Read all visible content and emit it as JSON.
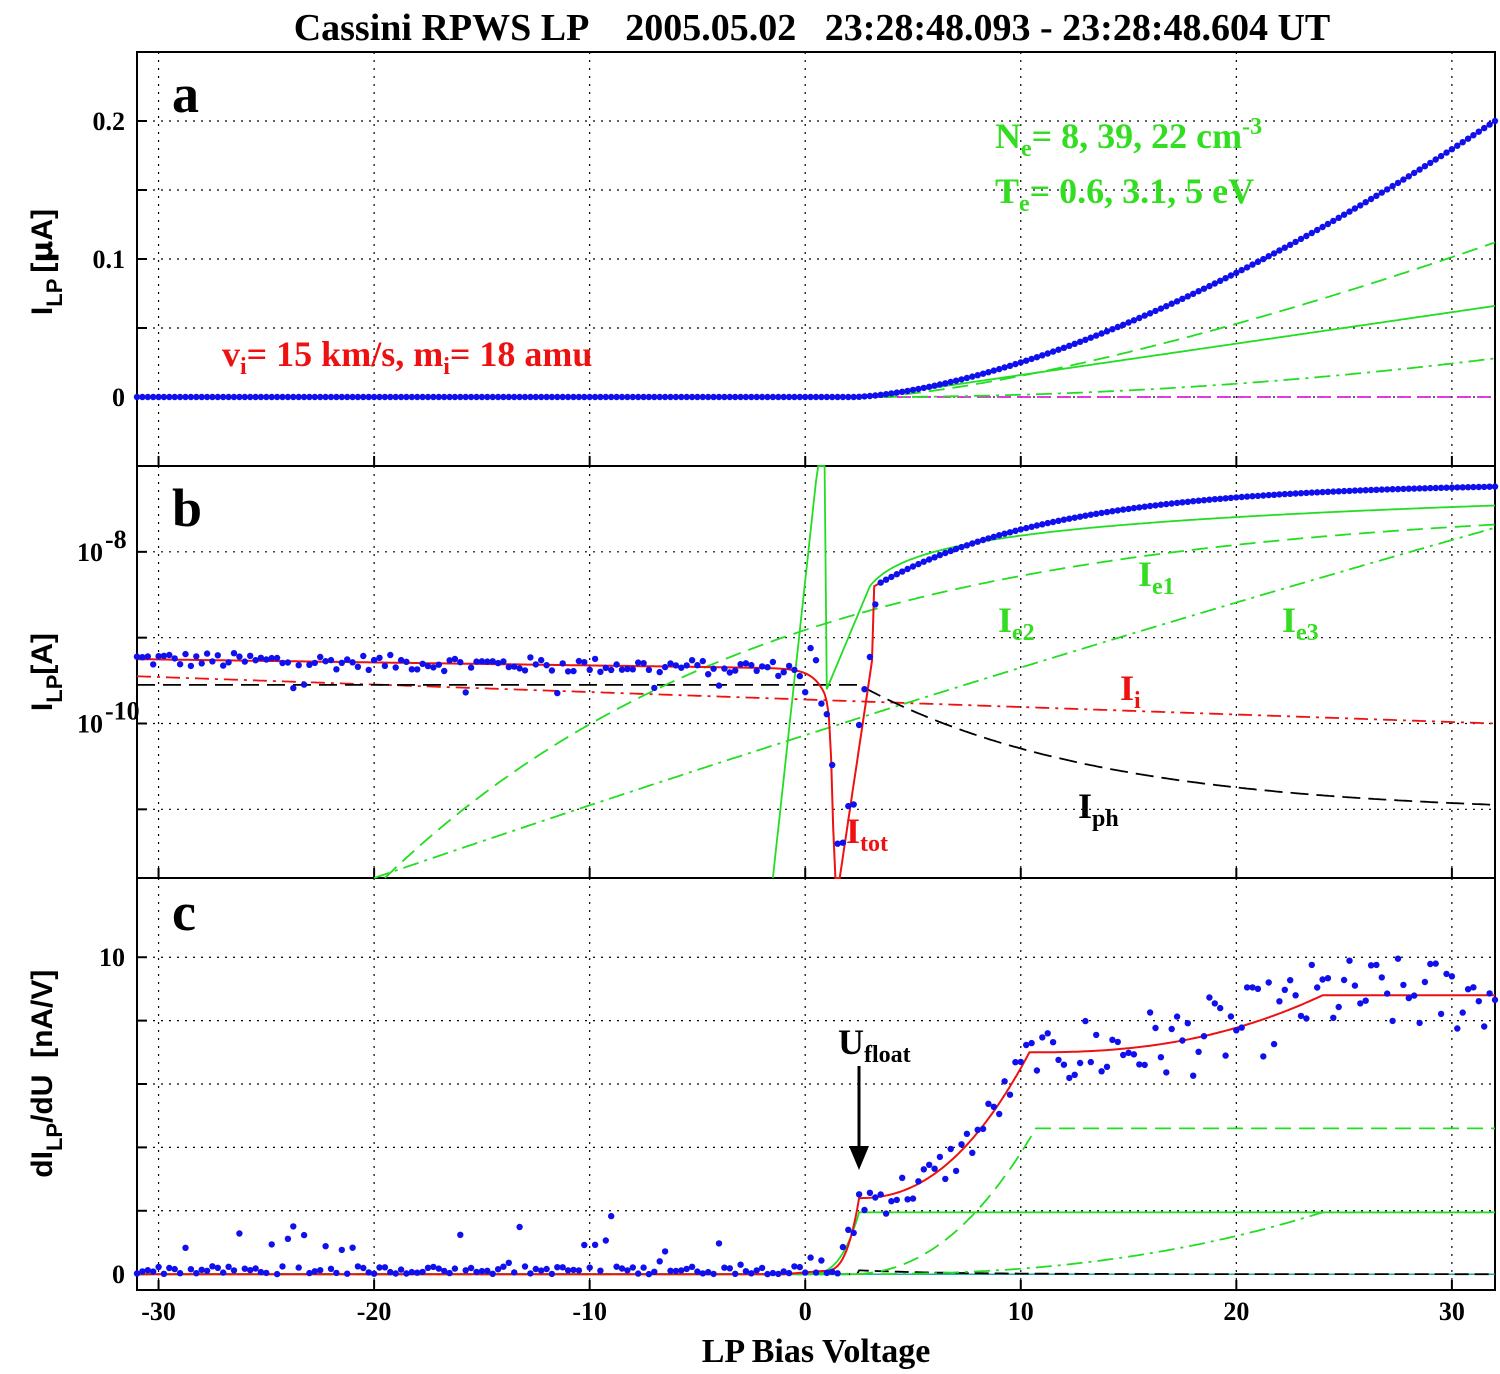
{
  "title": "Cassini RPWS LP    2005.05.02   23:28:48.093 - 23:28:48.604 UT",
  "xlabel": "LP Bias Voltage",
  "colors": {
    "data": "#1010ee",
    "fit_total": "#ee1111",
    "electron": "#22dd22",
    "photo": "#000000",
    "ion": "#ee1111",
    "magenta": "#dd22dd"
  },
  "panels": {
    "a": {
      "letter": "a",
      "ylabel_main": "I",
      "ylabel_sub": "LP",
      "ylabel_unit": "[",
      "ylabel_mu": "μ",
      "ylabel_unit2": "A]",
      "ann_ne_lead": "N",
      "ann_ne_sub": "e",
      "ann_ne_text": "= 8, 39, 22 cm",
      "ann_ne_sup": "-3",
      "ann_te_lead": "T",
      "ann_te_sub": "e",
      "ann_te_text": "= 0.6, 3.1, 5 eV",
      "ann_vi_lead": "v",
      "ann_vi_sub": "i",
      "ann_vi_text": "= 15 km/s, m",
      "ann_mi_sub": "i",
      "ann_mi_text": "= 18 amu"
    },
    "b": {
      "letter": "b",
      "ylabel_main": "I",
      "ylabel_sub": "LP",
      "ylabel_unit": "[A]",
      "label_ie1": "I",
      "label_ie1_sub": "e1",
      "label_ie2": "I",
      "label_ie2_sub": "e2",
      "label_ie3": "I",
      "label_ie3_sub": "e3",
      "label_ii": "I",
      "label_ii_sub": "i",
      "label_iph": "I",
      "label_iph_sub": "ph",
      "label_itot": "I",
      "label_itot_sub": "tot"
    },
    "c": {
      "letter": "c",
      "ylabel_main": "dI",
      "ylabel_sub": "LP",
      "ylabel_unit": "/dU  [nA/V]",
      "label_ufloat": "U",
      "label_ufloat_sub": "float"
    }
  },
  "chart_data": [
    {
      "panel": "a",
      "type": "line",
      "xlim": [
        -31,
        32
      ],
      "ylim": [
        -0.05,
        0.25
      ],
      "x_ticks": [
        -30,
        -20,
        -10,
        0,
        10,
        20,
        30
      ],
      "y_ticks": [
        0,
        0.1,
        0.2
      ],
      "y_tick_labels": [
        "0",
        "0.1",
        "0.2"
      ],
      "grid": true,
      "series": [
        {
          "name": "total fit",
          "style": "solid",
          "color": "red"
        },
        {
          "name": "Ie1",
          "style": "solid",
          "color": "green"
        },
        {
          "name": "Ie2",
          "style": "dashed",
          "color": "green"
        },
        {
          "name": "Ie3",
          "style": "dashdot",
          "color": "green"
        },
        {
          "name": "data",
          "style": "dots",
          "color": "blue"
        }
      ]
    },
    {
      "panel": "b",
      "type": "line",
      "xlim": [
        -31,
        32
      ],
      "yscale": "log",
      "ylim_log10": [
        -11.8,
        -7.0
      ],
      "y_ticks_log10": [
        -8,
        -10
      ],
      "y_tick_labels": [
        "10",
        "10"
      ],
      "y_tick_exps": [
        "-8",
        "-10"
      ],
      "grid": true,
      "series": [
        {
          "name": "I_tot",
          "style": "solid",
          "color": "red"
        },
        {
          "name": "I_e1",
          "style": "solid",
          "color": "green"
        },
        {
          "name": "I_e2",
          "style": "dashed",
          "color": "green"
        },
        {
          "name": "I_e3",
          "style": "dashdot",
          "color": "green"
        },
        {
          "name": "I_i",
          "style": "dashdot",
          "color": "red"
        },
        {
          "name": "I_ph",
          "style": "dashed",
          "color": "black"
        },
        {
          "name": "data",
          "style": "dots",
          "color": "blue"
        }
      ]
    },
    {
      "panel": "c",
      "type": "line",
      "xlim": [
        -31,
        32
      ],
      "ylim": [
        -0.5,
        12.5
      ],
      "y_ticks": [
        0,
        10
      ],
      "y_tick_labels": [
        "0",
        "10"
      ],
      "x_tick_labels": [
        "-30",
        "-20",
        "-10",
        "0",
        "10",
        "20",
        "30"
      ],
      "float_potential_V": 2.5,
      "grid": true,
      "series": [
        {
          "name": "total fit",
          "style": "solid",
          "color": "red"
        },
        {
          "name": "Ie1",
          "style": "solid",
          "color": "green"
        },
        {
          "name": "Ie2",
          "style": "dashed",
          "color": "green"
        },
        {
          "name": "Ie3",
          "style": "dashdot",
          "color": "green"
        },
        {
          "name": "Iph",
          "style": "dashed",
          "color": "black"
        },
        {
          "name": "data",
          "style": "dots",
          "color": "blue"
        }
      ]
    }
  ]
}
